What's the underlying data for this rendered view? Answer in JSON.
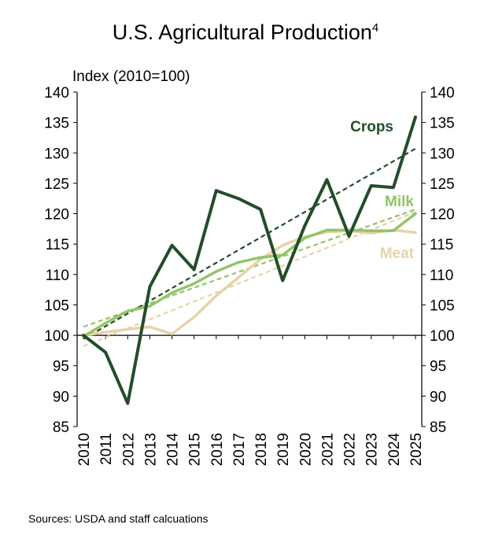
{
  "title": "U.S. Agricultural Production",
  "title_superscript": "4",
  "source": "Sources: USDA and staff calcuations",
  "colors": {
    "crops": "#234d2a",
    "milk": "#93c567",
    "meat": "#e6d3a8",
    "axis": "#000000"
  },
  "chart_data": {
    "type": "line",
    "ylabel": "Index (2010=100)",
    "ylim": [
      85,
      140
    ],
    "yticks": [
      85,
      90,
      95,
      100,
      105,
      110,
      115,
      120,
      125,
      130,
      135,
      140
    ],
    "categories": [
      "2010",
      "2011",
      "2012",
      "2013",
      "2014",
      "2015",
      "2016",
      "2017",
      "2018",
      "2019",
      "2020",
      "2021",
      "2022",
      "2023",
      "2024",
      "2025"
    ],
    "series": [
      {
        "name": "Crops",
        "key": "crops",
        "values": [
          100,
          97.2,
          88.8,
          108,
          114.8,
          110.8,
          123.8,
          122.5,
          120.7,
          109,
          118,
          125.6,
          116.3,
          124.6,
          124.3,
          135.9
        ],
        "trend": [
          99.4,
          130.7
        ]
      },
      {
        "name": "Milk",
        "key": "milk",
        "values": [
          99.8,
          102,
          104,
          104.8,
          107,
          108.5,
          110.5,
          112,
          112.8,
          113.2,
          116,
          117.3,
          117.3,
          117.2,
          117.2,
          120
        ],
        "trend": [
          101.4,
          120.7
        ]
      },
      {
        "name": "Meat",
        "key": "meat",
        "values": [
          100,
          100.5,
          101,
          101.4,
          100.2,
          103,
          106.5,
          109.5,
          112.5,
          114.8,
          116.2,
          117,
          117.2,
          116.8,
          117.3,
          116.9
        ],
        "trend": [
          98.2,
          120.3
        ]
      }
    ]
  }
}
